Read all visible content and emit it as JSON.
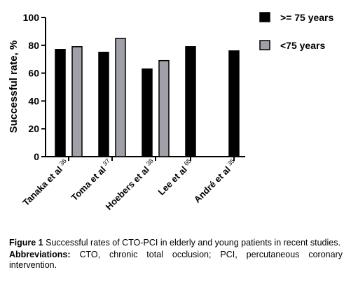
{
  "chart_data": {
    "type": "bar",
    "ylabel": "Successful rate, %",
    "ylim": [
      0,
      100
    ],
    "yticks": [
      0,
      20,
      40,
      60,
      80,
      100
    ],
    "grid": false,
    "legend_position": "top-right",
    "categories": [
      {
        "name": "Tanaka et al",
        "ref": "36"
      },
      {
        "name": "Toma et al",
        "ref": "37"
      },
      {
        "name": "Hoebers et al",
        "ref": "38"
      },
      {
        "name": "Lee et al",
        "ref": "65"
      },
      {
        "name": "André et al",
        "ref": "35"
      }
    ],
    "series": [
      {
        "name": ">= 75 years",
        "color": "#000000",
        "values": [
          77,
          75,
          63,
          79,
          76
        ]
      },
      {
        "name": "<75 years",
        "color": "#a0a0a8",
        "values": [
          79,
          85,
          69,
          null,
          null
        ]
      }
    ]
  },
  "caption": {
    "figure_label": "Figure 1",
    "figure_text": "Successful rates of CTO-PCI in elderly and young patients in recent studies.",
    "abbrev_label": "Abbreviations:",
    "abbrev_text": "CTO, chronic total occlusion; PCI, percutaneous coronary intervention."
  }
}
